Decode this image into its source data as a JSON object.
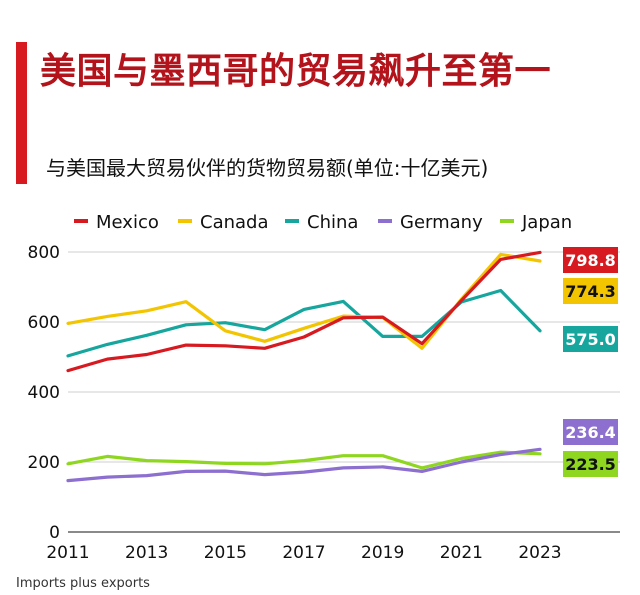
{
  "title": "美国与墨西哥的贸易飙升至第一",
  "subtitle": "与美国最大贸易伙伴的货物贸易额(单位:十亿美元)",
  "source_note": "Imports plus exports",
  "colors": {
    "accent": "#d71920",
    "title": "#b3141b"
  },
  "chart_data": {
    "type": "line",
    "x": [
      2011,
      2012,
      2013,
      2014,
      2015,
      2016,
      2017,
      2018,
      2019,
      2020,
      2021,
      2022,
      2023
    ],
    "xlim": [
      2011,
      2023
    ],
    "ylim": [
      0,
      800
    ],
    "x_ticks": [
      "2011",
      "2013",
      "2015",
      "2017",
      "2019",
      "2021",
      "2023"
    ],
    "y_ticks": [
      "0",
      "200",
      "400",
      "600",
      "800"
    ],
    "grid": "horizontal",
    "legend_position": "top",
    "series": [
      {
        "name": "Mexico",
        "color": "#d71920",
        "values": [
          461,
          494,
          507,
          534,
          532,
          525,
          557,
          612,
          614,
          538,
          661,
          779,
          798.8
        ],
        "end_label": "798.8"
      },
      {
        "name": "Canada",
        "color": "#f2c500",
        "values": [
          596,
          616,
          632,
          658,
          575,
          545,
          582,
          617,
          613,
          525,
          665,
          793,
          774.3
        ],
        "end_label": "774.3"
      },
      {
        "name": "China",
        "color": "#16a69e",
        "values": [
          503,
          536,
          562,
          592,
          598,
          578,
          636,
          659,
          559,
          559,
          657,
          690,
          575.0
        ],
        "end_label": "575.0"
      },
      {
        "name": "Germany",
        "color": "#8c6fcf",
        "values": [
          147,
          157,
          161,
          173,
          174,
          164,
          171,
          183,
          186,
          173,
          200,
          221,
          236.4
        ],
        "end_label": "236.4"
      },
      {
        "name": "Japan",
        "color": "#8ed61f",
        "values": [
          195,
          216,
          204,
          201,
          196,
          195,
          204,
          218,
          218,
          183,
          210,
          228,
          223.5
        ],
        "end_label": "223.5"
      }
    ]
  }
}
